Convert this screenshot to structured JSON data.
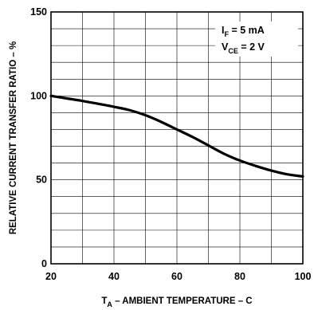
{
  "chart_data": {
    "type": "line",
    "xlabel_main": "T",
    "xlabel_sub": "A",
    "xlabel_rest": " – AMBIENT TEMPERATURE – C",
    "ylabel": "RELATIVE CURRENT TRANSFER RATIO – %",
    "xlim": [
      20,
      100
    ],
    "ylim": [
      0,
      150
    ],
    "x_ticks": [
      "20",
      "40",
      "60",
      "80",
      "100"
    ],
    "y_ticks": [
      "0",
      "50",
      "100",
      "150"
    ],
    "grid": true,
    "conditions": [
      {
        "main": "I",
        "sub": "F",
        "rest": " = 5 mA"
      },
      {
        "main": "V",
        "sub": "CE",
        "rest": " = 2 V"
      }
    ],
    "legend_position": "top-right",
    "line_color": "#000000",
    "series": [
      {
        "x": [
          20,
          25,
          30,
          35,
          40,
          45,
          50,
          55,
          60,
          65,
          70,
          75,
          80,
          85,
          90,
          95,
          100
        ],
        "values": [
          100,
          98.5,
          97,
          95.3,
          93.5,
          91.5,
          88.5,
          84.5,
          80,
          75.5,
          70.5,
          65.5,
          61.5,
          58.3,
          55.5,
          53.3,
          52
        ]
      }
    ]
  }
}
